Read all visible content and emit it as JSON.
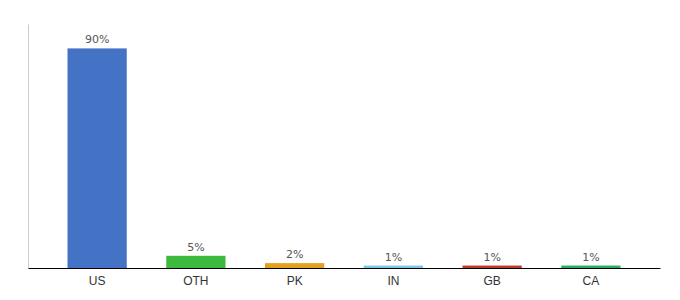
{
  "chart_data": {
    "type": "bar",
    "categories": [
      "US",
      "OTH",
      "PK",
      "IN",
      "GB",
      "CA"
    ],
    "values": [
      90,
      5,
      2,
      1,
      1,
      1
    ],
    "value_labels": [
      "90%",
      "5%",
      "2%",
      "1%",
      "1%",
      "1%"
    ],
    "colors": [
      "#4472c4",
      "#3dba3d",
      "#e6a020",
      "#7ec8e3",
      "#c0392b",
      "#27ae60"
    ],
    "ylim": [
      0,
      100
    ],
    "data_labels": true,
    "tick_labels": "x",
    "grid": false
  }
}
